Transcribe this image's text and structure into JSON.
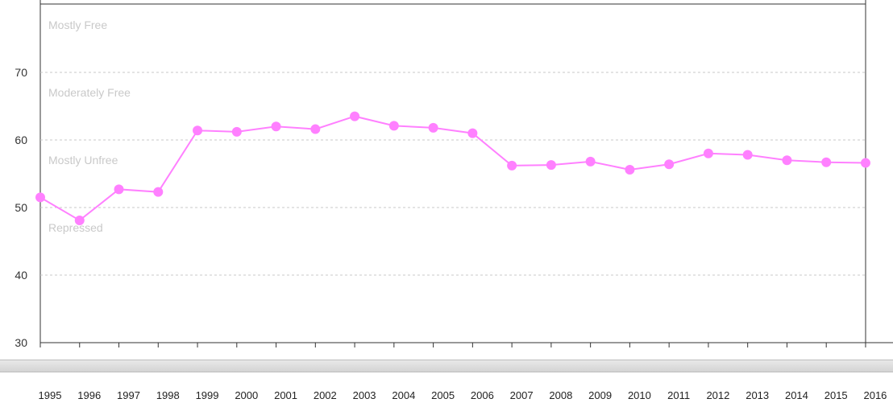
{
  "colors": {
    "series": "#ff80ff",
    "axis": "#333333",
    "grid": "#c8c8c8",
    "band_label": "#c9c9c9"
  },
  "bands": [
    "Mostly Free",
    "Moderately Free",
    "Mostly Unfree",
    "Repressed"
  ],
  "chart_data": {
    "type": "line",
    "title": "",
    "xlabel": "",
    "ylabel": "",
    "ylim": [
      30,
      80
    ],
    "y_ticks": [
      30,
      40,
      50,
      60,
      70
    ],
    "grid": "horizontal dashed at 40, 50, 60, 70",
    "categories": [
      "1995",
      "1996",
      "1997",
      "1998",
      "1999",
      "2000",
      "2001",
      "2002",
      "2003",
      "2004",
      "2005",
      "2006",
      "2007",
      "2008",
      "2009",
      "2010",
      "2011",
      "2012",
      "2013",
      "2014",
      "2015",
      "2016"
    ],
    "series": [
      {
        "values": [
          51.5,
          48.1,
          52.7,
          52.3,
          61.4,
          61.2,
          62.0,
          61.6,
          63.5,
          62.1,
          61.8,
          61.0,
          56.2,
          56.3,
          56.8,
          55.6,
          56.4,
          58.0,
          57.8,
          57.0,
          56.7,
          56.6
        ]
      }
    ],
    "band_labels": [
      {
        "text": "Mostly Free",
        "y": 77
      },
      {
        "text": "Moderately Free",
        "y": 67
      },
      {
        "text": "Mostly Unfree",
        "y": 57
      },
      {
        "text": "Repressed",
        "y": 47
      }
    ]
  }
}
